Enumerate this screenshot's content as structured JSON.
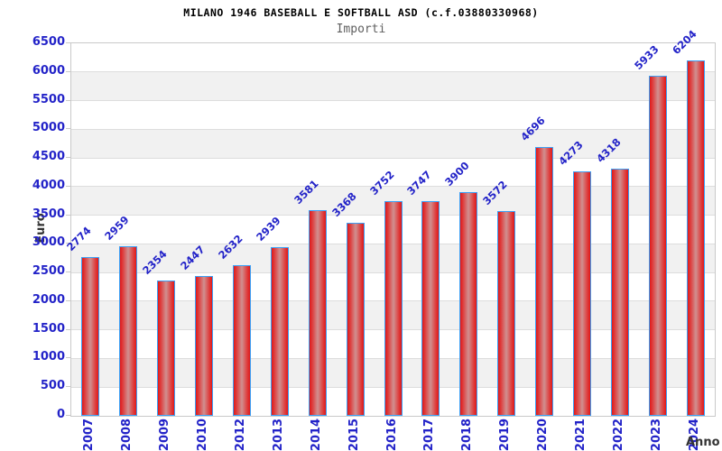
{
  "chart_data": {
    "type": "bar",
    "title": "MILANO 1946 BASEBALL E SOFTBALL ASD (c.f.03880330968)",
    "subtitle": "Importi",
    "xlabel": "Anno",
    "ylabel": "Euro",
    "categories": [
      "2007",
      "2008",
      "2009",
      "2010",
      "2012",
      "2013",
      "2014",
      "2015",
      "2016",
      "2017",
      "2018",
      "2019",
      "2020",
      "2021",
      "2022",
      "2023",
      "2024"
    ],
    "values": [
      2774,
      2959,
      2354,
      2447,
      2632,
      2939,
      3581,
      3368,
      3752,
      3747,
      3900,
      3572,
      4696,
      4273,
      4318,
      5933,
      6204
    ],
    "ylim": [
      0,
      6500
    ],
    "ytick_step": 500,
    "grid": "horizontal",
    "band_fill": "alternating-500",
    "legend": "none",
    "colors": {
      "background": "#ffffff",
      "title": "#000000",
      "subtitle": "#5f5f5f",
      "axis_title": "#333333",
      "label_blue": "#2323c8",
      "bar_edge": "#3b9ff5",
      "bar_fill_dark": "#e01818",
      "bar_fill_mid": "#dd4444",
      "bar_fill_light": "#d09090",
      "band_gray": "#f1f1f1",
      "band_white": "#ffffff",
      "grid_line": "#dddddd",
      "frame": "#c9c9c9"
    }
  }
}
